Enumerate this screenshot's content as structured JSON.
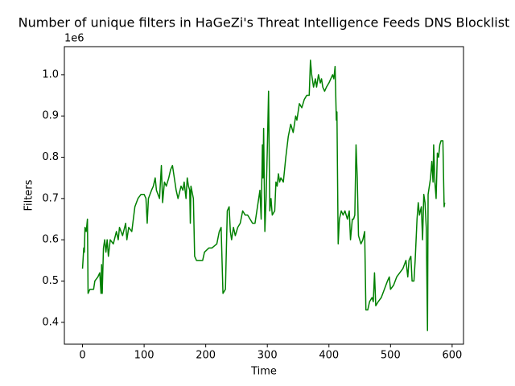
{
  "chart_data": {
    "type": "line",
    "title": "Number of unique filters in HaGeZi's Threat Intelligence Feeds DNS Blocklist",
    "x_label": "Time",
    "y_label": "Filters",
    "y_offset_label": "1e6",
    "color": "#008000",
    "x": [
      0,
      2,
      3,
      4,
      6,
      8,
      9,
      12,
      18,
      20,
      25,
      28,
      30,
      31,
      32,
      34,
      36,
      38,
      40,
      42,
      45,
      50,
      55,
      58,
      60,
      65,
      70,
      72,
      75,
      80,
      85,
      90,
      95,
      100,
      103,
      105,
      107,
      112,
      115,
      118,
      120,
      125,
      128,
      130,
      133,
      136,
      140,
      143,
      146,
      148,
      150,
      152,
      155,
      160,
      163,
      165,
      168,
      170,
      172,
      174,
      175,
      176,
      180,
      182,
      185,
      190,
      195,
      198,
      205,
      210,
      218,
      222,
      225,
      228,
      232,
      235,
      238,
      240,
      242,
      245,
      248,
      252,
      256,
      260,
      264,
      268,
      272,
      276,
      280,
      283,
      286,
      288,
      290,
      292,
      293,
      294,
      296,
      298,
      300,
      302,
      304,
      306,
      308,
      312,
      314,
      316,
      318,
      320,
      322,
      326,
      330,
      334,
      338,
      342,
      346,
      348,
      352,
      356,
      360,
      364,
      368,
      370,
      372,
      375,
      378,
      380,
      383,
      386,
      388,
      390,
      393,
      396,
      400,
      403,
      406,
      408,
      410,
      412,
      413,
      415,
      417,
      420,
      423,
      426,
      430,
      433,
      435,
      438,
      440,
      442,
      444,
      446,
      448,
      450,
      452,
      455,
      458,
      460,
      463,
      466,
      470,
      472,
      474,
      476,
      480,
      485,
      490,
      495,
      498,
      500,
      505,
      510,
      515,
      520,
      525,
      528,
      530,
      533,
      535,
      538,
      540,
      543,
      545,
      547,
      550,
      552,
      554,
      556,
      558,
      560,
      561,
      563,
      565,
      567,
      569,
      570,
      572,
      574,
      576,
      578,
      580,
      582,
      585,
      587,
      588
    ],
    "values": [
      0.53,
      0.58,
      0.57,
      0.63,
      0.62,
      0.65,
      0.47,
      0.48,
      0.48,
      0.5,
      0.51,
      0.52,
      0.47,
      0.54,
      0.47,
      0.58,
      0.6,
      0.57,
      0.6,
      0.56,
      0.6,
      0.59,
      0.62,
      0.6,
      0.63,
      0.61,
      0.64,
      0.6,
      0.63,
      0.62,
      0.68,
      0.7,
      0.71,
      0.71,
      0.7,
      0.64,
      0.7,
      0.72,
      0.73,
      0.75,
      0.72,
      0.7,
      0.78,
      0.69,
      0.74,
      0.73,
      0.75,
      0.77,
      0.78,
      0.76,
      0.74,
      0.72,
      0.7,
      0.73,
      0.72,
      0.74,
      0.7,
      0.75,
      0.73,
      0.72,
      0.64,
      0.73,
      0.7,
      0.56,
      0.55,
      0.55,
      0.55,
      0.57,
      0.58,
      0.58,
      0.59,
      0.62,
      0.63,
      0.47,
      0.48,
      0.67,
      0.68,
      0.62,
      0.6,
      0.63,
      0.61,
      0.63,
      0.64,
      0.67,
      0.66,
      0.66,
      0.65,
      0.64,
      0.64,
      0.67,
      0.7,
      0.72,
      0.65,
      0.83,
      0.75,
      0.87,
      0.62,
      0.7,
      0.82,
      0.96,
      0.67,
      0.7,
      0.66,
      0.67,
      0.74,
      0.73,
      0.76,
      0.74,
      0.75,
      0.74,
      0.8,
      0.85,
      0.88,
      0.86,
      0.9,
      0.89,
      0.93,
      0.92,
      0.94,
      0.95,
      0.95,
      1.035,
      1.0,
      0.97,
      0.99,
      0.97,
      1.0,
      0.98,
      0.99,
      0.97,
      0.96,
      0.97,
      0.98,
      0.99,
      1.0,
      0.99,
      1.02,
      0.89,
      0.91,
      0.59,
      0.65,
      0.67,
      0.66,
      0.67,
      0.65,
      0.67,
      0.6,
      0.65,
      0.65,
      0.66,
      0.83,
      0.75,
      0.61,
      0.6,
      0.59,
      0.6,
      0.62,
      0.43,
      0.43,
      0.45,
      0.46,
      0.45,
      0.52,
      0.44,
      0.45,
      0.46,
      0.48,
      0.5,
      0.51,
      0.48,
      0.49,
      0.51,
      0.52,
      0.53,
      0.55,
      0.51,
      0.55,
      0.56,
      0.5,
      0.5,
      0.55,
      0.65,
      0.69,
      0.66,
      0.68,
      0.6,
      0.71,
      0.69,
      0.63,
      0.38,
      0.71,
      0.73,
      0.75,
      0.79,
      0.74,
      0.83,
      0.74,
      0.7,
      0.81,
      0.8,
      0.83,
      0.84,
      0.84,
      0.68,
      0.69
    ],
    "xlim": [
      -29.45,
      618.45
    ],
    "xticks": [
      0,
      100,
      200,
      300,
      400,
      500,
      600
    ],
    "ylim": [
      0.347,
      1.068
    ],
    "yticks": [
      0.4,
      0.5,
      0.6,
      0.7,
      0.8,
      0.9,
      {
        "value": 1,
        "label": "1.0"
      }
    ]
  }
}
